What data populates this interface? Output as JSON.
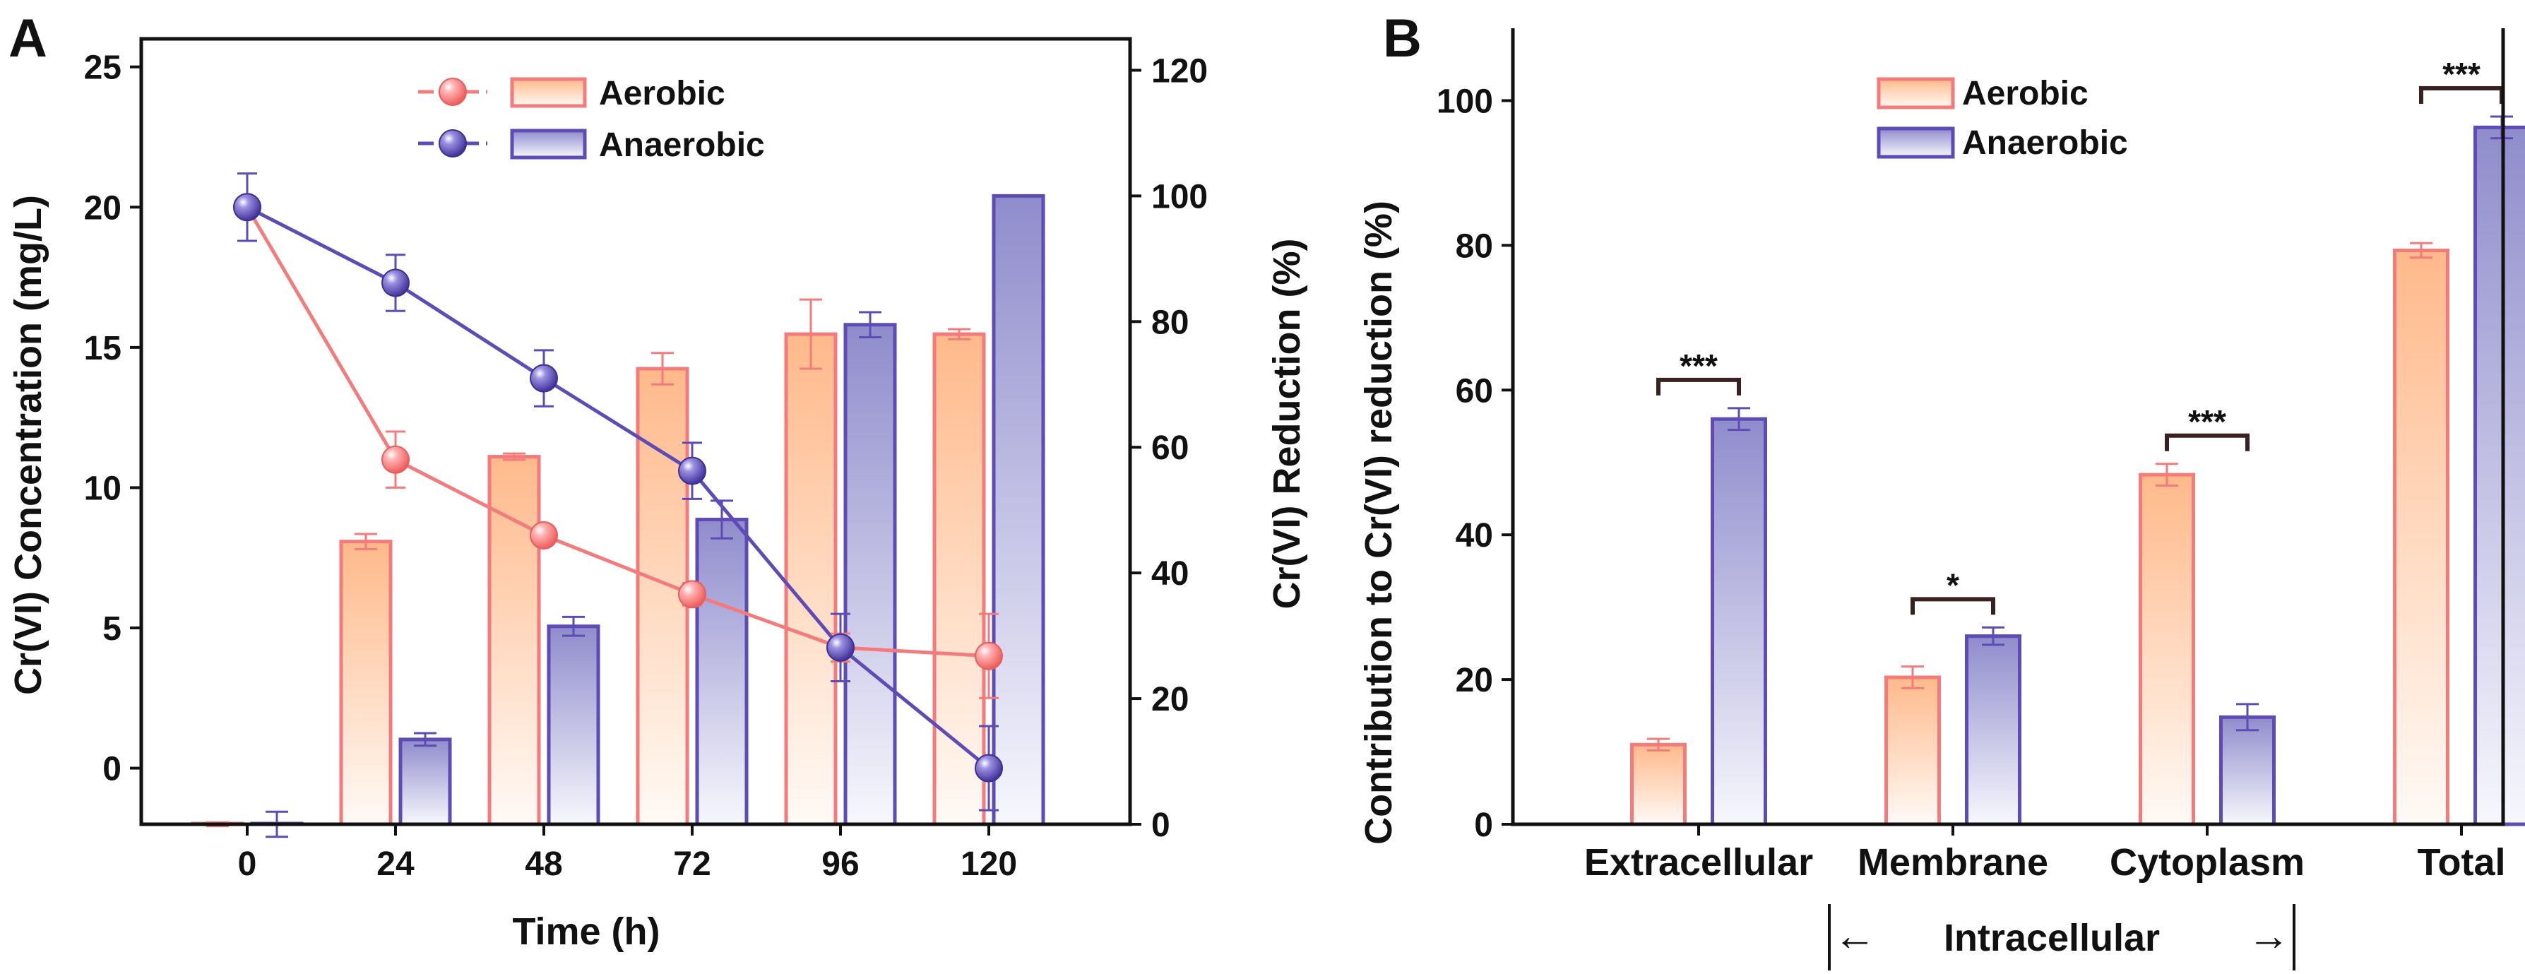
{
  "chart_data": [
    {
      "panel_label": "A",
      "type": "bar+line",
      "x": [
        "0",
        "24",
        "48",
        "72",
        "96",
        "120"
      ],
      "xlabel": "Time (h)",
      "ylabel_left": "Cr(VI) Concentration (mg/L)",
      "ylabel_right": "Cr(VI) Reduction (%)",
      "ylim_left": [
        -2,
        26
      ],
      "ylim_right": [
        0,
        125
      ],
      "yticks_left": [
        "0",
        "5",
        "10",
        "15",
        "20",
        "25"
      ],
      "yticks_right": [
        "0",
        "20",
        "40",
        "60",
        "80",
        "100",
        "120"
      ],
      "legend": [
        "Aerobic",
        "Anaerobic"
      ],
      "bar_series": [
        {
          "name": "Aerobic",
          "values": [
            0,
            45,
            58.5,
            72.5,
            78,
            78
          ],
          "errors": [
            0.3,
            1.2,
            0.5,
            2.5,
            5.5,
            0.8
          ]
        },
        {
          "name": "Anaerobic",
          "values": [
            0,
            13.5,
            31.5,
            48.5,
            79.5,
            100
          ],
          "errors": [
            2,
            1,
            1.5,
            3,
            2,
            0
          ]
        }
      ],
      "line_series": [
        {
          "name": "Aerobic",
          "values": [
            20,
            11,
            8.3,
            6.2,
            4.3,
            4.0
          ],
          "errors": [
            0.3,
            1.0,
            0.3,
            0.4,
            0.5,
            1.5
          ]
        },
        {
          "name": "Anaerobic",
          "values": [
            20,
            17.3,
            13.9,
            10.6,
            4.3,
            0
          ],
          "errors": [
            1.2,
            1.0,
            1.0,
            1.0,
            1.2,
            1.5
          ]
        }
      ]
    },
    {
      "panel_label": "B",
      "type": "bar",
      "categories": [
        "Extracellular",
        "Membrane",
        "Cytoplasm",
        "Total"
      ],
      "ylabel": "Contribution to Cr(VI) reduction (%)",
      "ylim": [
        0,
        110
      ],
      "yticks": [
        "0",
        "20",
        "40",
        "60",
        "80",
        "100"
      ],
      "legend": [
        "Aerobic",
        "Anaerobic"
      ],
      "series": [
        {
          "name": "Aerobic",
          "values": [
            11,
            20.3,
            48.3,
            79.3
          ],
          "errors": [
            0.8,
            1.5,
            1.5,
            1.0
          ]
        },
        {
          "name": "Anaerobic",
          "values": [
            56,
            26,
            14.8,
            96.3
          ],
          "errors": [
            1.5,
            1.2,
            1.8,
            1.5
          ]
        }
      ],
      "significance": [
        "***",
        "*",
        "***",
        "***"
      ],
      "bracket_label": "Intracellular",
      "bracket_arrow_left": "←",
      "bracket_arrow_right": "→"
    }
  ],
  "colors": {
    "aerobic": "#f47b7b",
    "aerobic_fill_top": "#ffb98a",
    "anaerobic": "#5f4bb6",
    "anaerobic_fill_top": "#8f8ccc",
    "axis": "#111111"
  }
}
